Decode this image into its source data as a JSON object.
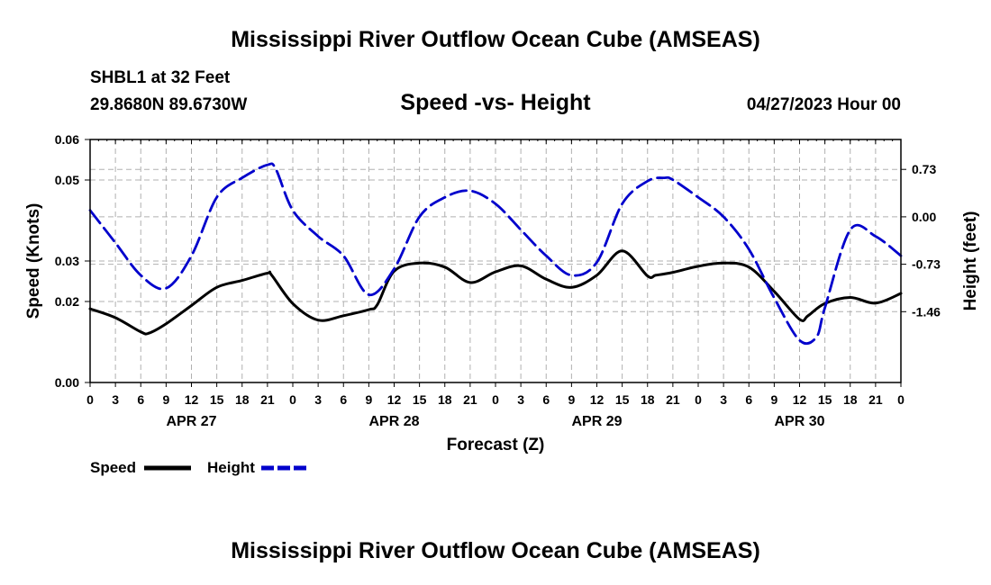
{
  "header": {
    "title": "Mississippi River Outflow Ocean Cube (AMSEAS)",
    "title_bottom": "Mississippi River Outflow Ocean Cube (AMSEAS)",
    "station": "SHBL1 at 32 Feet",
    "coords": "29.8680N  89.6730W",
    "subtitle": "Speed -vs- Height",
    "datetime": "04/27/2023 Hour 00"
  },
  "chart_data": {
    "type": "line",
    "xlabel": "Forecast (Z)",
    "ylabel_left": "Speed (Knots)",
    "ylabel_right": "Height (feet)",
    "x_range_hours": [
      0,
      96
    ],
    "x_tick_step_hours": 3,
    "x_tick_labels": [
      "0",
      "3",
      "6",
      "9",
      "12",
      "15",
      "18",
      "21",
      "0",
      "3",
      "6",
      "9",
      "12",
      "15",
      "18",
      "21",
      "0",
      "3",
      "6",
      "9",
      "12",
      "15",
      "18",
      "21",
      "0",
      "3",
      "6",
      "9",
      "12",
      "15",
      "18",
      "21",
      "0"
    ],
    "day_labels": [
      {
        "label": "APR 27",
        "hour": 12
      },
      {
        "label": "APR 28",
        "hour": 36
      },
      {
        "label": "APR 29",
        "hour": 60
      },
      {
        "label": "APR 30",
        "hour": 84
      }
    ],
    "left_axis": {
      "ylim": [
        0,
        0.06
      ],
      "tick_values": [
        0,
        0.02,
        0.03,
        0.05,
        0.06
      ],
      "tick_labels": [
        "0.00",
        "0.02",
        "0.03",
        "0.05",
        "0.06"
      ]
    },
    "right_axis": {
      "ylim": [
        -2.55,
        1.19
      ],
      "tick_values": [
        0.73,
        0.0,
        -0.73,
        -1.46
      ],
      "tick_labels": [
        "0.73",
        "0.00",
        "-0.73",
        "-1.46"
      ]
    },
    "legend": [
      {
        "label": "Speed",
        "color": "#000000",
        "style": "solid"
      },
      {
        "label": "Height",
        "color": "#0000cc",
        "style": "dashed"
      }
    ],
    "series": [
      {
        "name": "Speed",
        "axis": "left",
        "color": "#000000",
        "x": [
          0,
          3,
          6,
          7,
          9,
          12,
          15,
          18,
          21,
          21.5,
          24,
          27,
          30,
          33,
          34,
          36,
          39,
          42,
          45,
          48,
          51,
          54,
          57,
          60,
          63,
          66,
          67,
          69,
          72,
          75,
          78,
          81,
          84,
          85,
          87,
          90,
          93,
          96
        ],
        "values": [
          0.0182,
          0.016,
          0.0125,
          0.0122,
          0.0145,
          0.019,
          0.0235,
          0.0252,
          0.027,
          0.0265,
          0.0195,
          0.0154,
          0.0165,
          0.018,
          0.0192,
          0.0275,
          0.0295,
          0.0285,
          0.0247,
          0.0273,
          0.0288,
          0.0255,
          0.0235,
          0.0265,
          0.0325,
          0.0263,
          0.0265,
          0.0272,
          0.0287,
          0.0295,
          0.0285,
          0.0225,
          0.0156,
          0.0165,
          0.0195,
          0.021,
          0.0196,
          0.022
        ]
      },
      {
        "name": "Height",
        "axis": "right",
        "color": "#0000cc",
        "x": [
          0,
          3,
          6,
          9,
          12,
          15,
          18,
          21,
          22,
          24,
          27,
          30,
          33,
          36,
          39,
          42,
          45,
          48,
          51,
          54,
          57,
          60,
          63,
          66,
          68,
          69,
          72,
          75,
          78,
          81,
          84,
          86,
          87,
          90,
          93,
          96
        ],
        "values": [
          0.1,
          -0.4,
          -0.9,
          -1.1,
          -0.6,
          0.3,
          0.6,
          0.8,
          0.73,
          0.1,
          -0.3,
          -0.6,
          -1.2,
          -0.8,
          0.0,
          0.3,
          0.4,
          0.2,
          -0.2,
          -0.6,
          -0.9,
          -0.7,
          0.2,
          0.55,
          0.6,
          0.57,
          0.3,
          0.0,
          -0.5,
          -1.25,
          -1.9,
          -1.85,
          -1.4,
          -0.2,
          -0.3,
          -0.6
        ]
      }
    ]
  }
}
